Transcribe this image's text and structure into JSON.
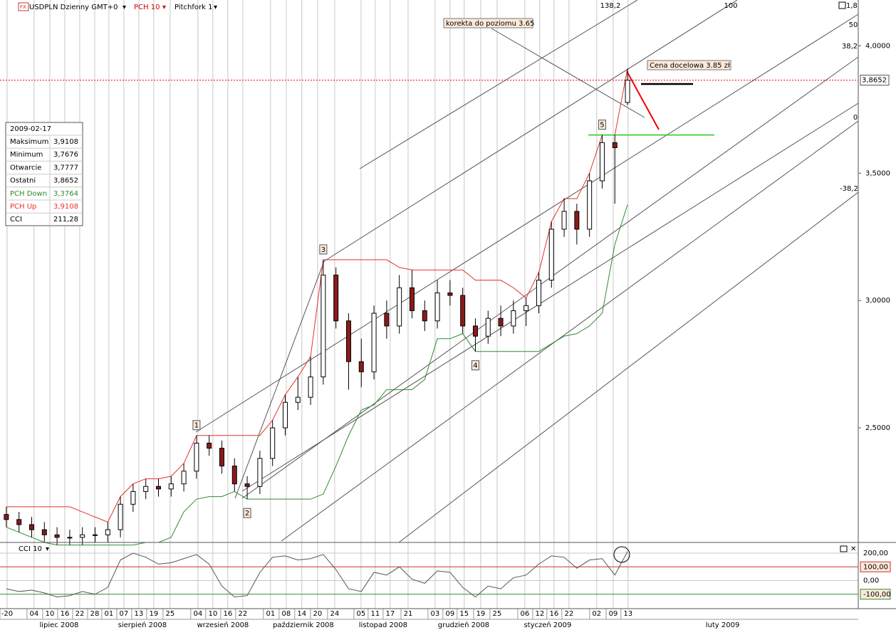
{
  "chart_data": {
    "type": "candlestick",
    "header": {
      "symbol": "USDPLN Dzienny GMT+0",
      "indicator": "PCH 10",
      "tool": "Pitchfork 1",
      "lower_indicator": "CCI 10",
      "corner": "1,8"
    },
    "open": [
      2.16,
      2.14,
      2.12,
      2.1,
      2.08,
      2.07,
      2.07,
      2.08,
      2.08,
      2.1,
      2.2,
      2.25,
      2.27,
      2.26,
      2.28,
      2.33,
      2.44,
      2.42,
      2.35,
      2.28,
      2.27,
      2.38,
      2.5,
      2.6,
      2.62,
      2.7,
      3.1,
      2.92,
      2.76,
      2.72,
      2.95,
      2.9,
      3.05,
      2.96,
      2.92,
      3.03,
      3.02,
      2.9,
      2.86,
      2.93,
      2.9,
      2.96,
      2.98,
      3.08,
      3.28,
      3.35,
      3.28,
      3.47,
      3.62,
      3.7777
    ],
    "high": [
      2.19,
      2.17,
      2.15,
      2.13,
      2.11,
      2.1,
      2.11,
      2.11,
      2.13,
      2.23,
      2.28,
      2.3,
      2.3,
      2.31,
      2.36,
      2.47,
      2.47,
      2.45,
      2.38,
      2.31,
      2.41,
      2.53,
      2.63,
      2.7,
      2.78,
      3.16,
      3.13,
      2.95,
      2.85,
      2.98,
      3.0,
      3.1,
      3.12,
      3.0,
      3.08,
      3.08,
      3.05,
      2.93,
      2.96,
      2.98,
      3.0,
      3.01,
      3.11,
      3.31,
      3.4,
      3.38,
      3.5,
      3.65,
      3.65,
      3.9108
    ],
    "low": [
      2.11,
      2.09,
      2.07,
      2.05,
      2.04,
      2.04,
      2.04,
      2.05,
      2.05,
      2.07,
      2.17,
      2.22,
      2.23,
      2.23,
      2.25,
      2.3,
      2.39,
      2.32,
      2.25,
      2.22,
      2.24,
      2.35,
      2.47,
      2.57,
      2.59,
      2.67,
      2.89,
      2.65,
      2.66,
      2.69,
      2.85,
      2.87,
      2.93,
      2.88,
      2.89,
      2.98,
      2.87,
      2.8,
      2.83,
      2.86,
      2.87,
      2.9,
      2.95,
      3.05,
      3.25,
      3.22,
      3.25,
      3.44,
      3.38,
      3.7676
    ],
    "close": [
      2.14,
      2.12,
      2.1,
      2.08,
      2.07,
      2.07,
      2.08,
      2.08,
      2.1,
      2.2,
      2.25,
      2.27,
      2.26,
      2.28,
      2.33,
      2.44,
      2.42,
      2.35,
      2.28,
      2.27,
      2.38,
      2.5,
      2.6,
      2.62,
      2.7,
      3.1,
      2.92,
      2.76,
      2.72,
      2.95,
      2.9,
      3.05,
      2.96,
      2.92,
      3.03,
      3.02,
      2.9,
      2.86,
      2.93,
      2.9,
      2.96,
      2.98,
      3.08,
      3.28,
      3.35,
      3.28,
      3.47,
      3.62,
      3.6,
      3.8652
    ],
    "pch_up": [
      2.19,
      2.19,
      2.19,
      2.19,
      2.19,
      2.19,
      2.17,
      2.15,
      2.13,
      2.23,
      2.28,
      2.3,
      2.3,
      2.31,
      2.36,
      2.47,
      2.47,
      2.47,
      2.47,
      2.47,
      2.47,
      2.53,
      2.63,
      2.7,
      2.78,
      3.16,
      3.16,
      3.16,
      3.16,
      3.16,
      3.16,
      3.13,
      3.12,
      3.12,
      3.12,
      3.12,
      3.12,
      3.08,
      3.08,
      3.08,
      3.05,
      3.01,
      3.11,
      3.31,
      3.4,
      3.4,
      3.5,
      3.65,
      3.65,
      3.9108
    ],
    "pch_down": [
      2.11,
      2.09,
      2.07,
      2.05,
      2.04,
      2.04,
      2.04,
      2.04,
      2.04,
      2.04,
      2.04,
      2.05,
      2.05,
      2.07,
      2.17,
      2.22,
      2.23,
      2.23,
      2.25,
      2.22,
      2.22,
      2.22,
      2.22,
      2.22,
      2.22,
      2.24,
      2.35,
      2.47,
      2.57,
      2.59,
      2.65,
      2.65,
      2.65,
      2.69,
      2.85,
      2.85,
      2.87,
      2.8,
      2.8,
      2.8,
      2.8,
      2.8,
      2.8,
      2.83,
      2.86,
      2.87,
      2.9,
      2.95,
      3.22,
      3.3764
    ],
    "up_color": "#ffffff",
    "down_color": "#8b1a1a",
    "pch_up_color": "#e8312a",
    "pch_down_color": "#2e8b2e",
    "xlim": [
      -0.5,
      67.2
    ],
    "ylim": [
      2.05,
      4.18
    ],
    "yticks": [
      {
        "value": 2.5,
        "label": "2,5000"
      },
      {
        "value": 3.0,
        "label": "3,0000"
      },
      {
        "value": 3.5,
        "label": "3,5000"
      },
      {
        "value": 4.0,
        "label": "4,0000"
      }
    ],
    "xticks": [
      {
        "value": 0.06,
        "label": "-20"
      },
      {
        "value": 2.19,
        "label": "04"
      },
      {
        "value": 3.43,
        "label": "10"
      },
      {
        "value": 4.61,
        "label": "16"
      },
      {
        "value": 5.79,
        "label": "22"
      },
      {
        "value": 6.97,
        "label": "28"
      },
      {
        "value": 8.09,
        "label": "01"
      },
      {
        "value": 9.27,
        "label": "07"
      },
      {
        "value": 10.45,
        "label": "13"
      },
      {
        "value": 11.63,
        "label": "19"
      },
      {
        "value": 12.92,
        "label": "25"
      },
      {
        "value": 15.11,
        "label": "04"
      },
      {
        "value": 16.29,
        "label": "10"
      },
      {
        "value": 17.47,
        "label": "16"
      },
      {
        "value": 18.65,
        "label": "22"
      },
      {
        "value": 20.84,
        "label": "01"
      },
      {
        "value": 22.08,
        "label": "08"
      },
      {
        "value": 23.31,
        "label": "14"
      },
      {
        "value": 24.55,
        "label": "20"
      },
      {
        "value": 25.9,
        "label": "24"
      },
      {
        "value": 27.98,
        "label": "05"
      },
      {
        "value": 29.1,
        "label": "11"
      },
      {
        "value": 30.28,
        "label": "17"
      },
      {
        "value": 31.69,
        "label": "21"
      },
      {
        "value": 33.82,
        "label": "03"
      },
      {
        "value": 35,
        "label": "09"
      },
      {
        "value": 36.12,
        "label": "15"
      },
      {
        "value": 37.42,
        "label": "19"
      },
      {
        "value": 38.71,
        "label": "25"
      },
      {
        "value": 40.9,
        "label": "06"
      },
      {
        "value": 42.08,
        "label": "12"
      },
      {
        "value": 43.2,
        "label": "16"
      },
      {
        "value": 44.38,
        "label": "22"
      },
      {
        "value": 46.57,
        "label": "02"
      },
      {
        "value": 47.87,
        "label": "09"
      },
      {
        "value": 49.04,
        "label": "13"
      }
    ],
    "months": [
      {
        "value": 4.16,
        "label": "lipiec 2008"
      },
      {
        "value": 10.73,
        "label": "sierpień 2008"
      },
      {
        "value": 17.08,
        "label": "wrzesień 2008"
      },
      {
        "value": 23.43,
        "label": "październik 2008"
      },
      {
        "value": 29.72,
        "label": "listopad 2008"
      },
      {
        "value": 36.07,
        "label": "grudzień 2008"
      },
      {
        "value": 42.7,
        "label": "styczeń 2009"
      },
      {
        "value": 56.5,
        "label": "luty 2009"
      }
    ],
    "last_price_label": "3,8652",
    "correction_level": 3.65,
    "target_level": 3.85,
    "annotations": {
      "correction": "korekta do poziomu 3.65",
      "target": "Cena docelowa 3.85 zł"
    },
    "waves": [
      {
        "label": "1",
        "index": 15
      },
      {
        "label": "2",
        "index": 19
      },
      {
        "label": "3",
        "index": 25
      },
      {
        "label": "4",
        "index": 37
      },
      {
        "label": "5",
        "index": 47
      }
    ],
    "pitchfork_levels": [
      "138,2",
      "100",
      "50",
      "38,2",
      "0",
      "-38,2"
    ],
    "info_box": {
      "date": "2009-02-17",
      "rows": [
        {
          "label": "Maksimum",
          "value": "3,9108"
        },
        {
          "label": "Minimum",
          "value": "3,7676"
        },
        {
          "label": "Otwarcie",
          "value": "3,7777"
        },
        {
          "label": "Ostatni",
          "value": "3,8652"
        },
        {
          "label": "PCH Down",
          "value": "3,3764"
        },
        {
          "label": "PCH Up",
          "value": "3,9108"
        },
        {
          "label": "CCI",
          "value": "211,28"
        }
      ]
    },
    "cci": {
      "values": [
        -60,
        -80,
        -70,
        -90,
        -120,
        -110,
        -80,
        -100,
        -50,
        150,
        200,
        170,
        120,
        130,
        160,
        190,
        120,
        -40,
        -120,
        -110,
        60,
        170,
        180,
        150,
        160,
        190,
        80,
        -60,
        -80,
        60,
        40,
        100,
        10,
        -20,
        70,
        60,
        -50,
        -120,
        -40,
        -60,
        20,
        40,
        120,
        180,
        170,
        90,
        150,
        160,
        40,
        211.28
      ],
      "ylim": [
        -205,
        278
      ],
      "yticks": [
        {
          "value": 200,
          "label": "200,00"
        },
        {
          "value": 100,
          "label": "100,00"
        },
        {
          "value": 0,
          "label": "0,00"
        },
        {
          "value": -100,
          "label": "-100,00"
        }
      ],
      "level_colors": [
        "",
        "#d03030",
        "",
        "#2e8b2e"
      ]
    }
  }
}
